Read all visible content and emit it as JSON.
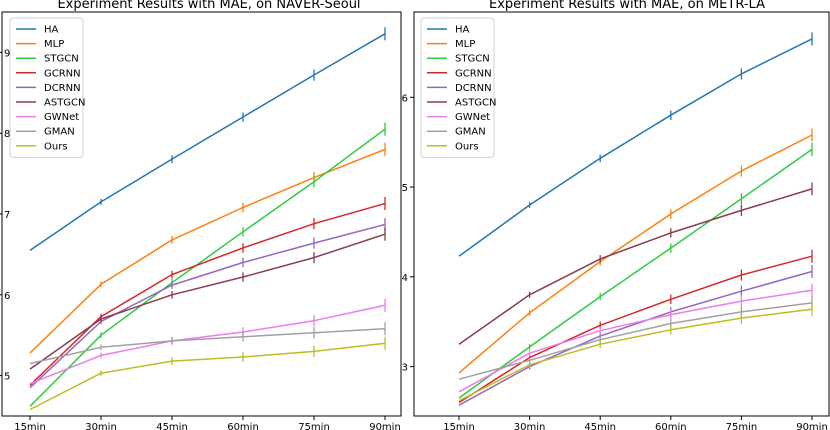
{
  "chart_data": [
    {
      "type": "line",
      "title": "Experiment Results with MAE, on NAVER-Seoul",
      "xlabel": "",
      "ylabel": "",
      "categories": [
        "15min",
        "30min",
        "45min",
        "60min",
        "75min",
        "90min"
      ],
      "yticks": [
        "5",
        "6",
        "7",
        "8",
        "9"
      ],
      "ylim": [
        4.5,
        9.5
      ],
      "legend_position": "top-left",
      "series": [
        {
          "name": "HA",
          "color": "#1f77b4",
          "values": [
            6.55,
            7.15,
            7.68,
            8.2,
            8.72,
            9.23
          ]
        },
        {
          "name": "MLP",
          "color": "#ff7f0e",
          "values": [
            5.28,
            6.13,
            6.68,
            7.08,
            7.45,
            7.8
          ]
        },
        {
          "name": "STGCN",
          "color": "#2ecc40",
          "values": [
            4.62,
            5.5,
            6.15,
            6.78,
            7.4,
            8.05
          ]
        },
        {
          "name": "GCRNN",
          "color": "#d62728",
          "values": [
            4.88,
            5.73,
            6.25,
            6.58,
            6.88,
            7.13
          ]
        },
        {
          "name": "DCRNN",
          "color": "#9467bd",
          "values": [
            4.85,
            5.67,
            6.12,
            6.4,
            6.64,
            6.87
          ]
        },
        {
          "name": "ASTGCN",
          "color": "#8c3c4f",
          "values": [
            5.08,
            5.7,
            6.0,
            6.22,
            6.46,
            6.75
          ]
        },
        {
          "name": "GWNet",
          "color": "#ee7bee",
          "values": [
            4.9,
            5.25,
            5.43,
            5.54,
            5.68,
            5.87
          ]
        },
        {
          "name": "GMAN",
          "color": "#a0a0a0",
          "values": [
            5.15,
            5.35,
            5.43,
            5.48,
            5.53,
            5.58
          ]
        },
        {
          "name": "Ours",
          "color": "#bcbd22",
          "values": [
            4.58,
            5.03,
            5.18,
            5.23,
            5.3,
            5.4
          ]
        }
      ]
    },
    {
      "type": "line",
      "title": "Experiment Results with MAE, on METR-LA",
      "xlabel": "",
      "ylabel": "",
      "categories": [
        "15min",
        "30min",
        "45min",
        "60min",
        "75min",
        "90min"
      ],
      "yticks": [
        "3",
        "4",
        "5",
        "6"
      ],
      "ylim": [
        2.45,
        6.95
      ],
      "legend_position": "top-left",
      "series": [
        {
          "name": "HA",
          "color": "#1f77b4",
          "values": [
            4.23,
            4.8,
            5.32,
            5.8,
            6.26,
            6.65
          ]
        },
        {
          "name": "MLP",
          "color": "#ff7f0e",
          "values": [
            2.93,
            3.6,
            4.17,
            4.7,
            5.18,
            5.58
          ]
        },
        {
          "name": "STGCN",
          "color": "#2ecc40",
          "values": [
            2.65,
            3.22,
            3.78,
            4.32,
            4.87,
            5.42
          ]
        },
        {
          "name": "GCRNN",
          "color": "#d62728",
          "values": [
            2.6,
            3.1,
            3.46,
            3.75,
            4.02,
            4.23
          ]
        },
        {
          "name": "DCRNN",
          "color": "#9467bd",
          "values": [
            2.57,
            3.0,
            3.34,
            3.61,
            3.84,
            4.06
          ]
        },
        {
          "name": "ASTGCN",
          "color": "#8c3c4f",
          "values": [
            3.25,
            3.8,
            4.2,
            4.49,
            4.74,
            4.98
          ]
        },
        {
          "name": "GWNet",
          "color": "#ee7bee",
          "values": [
            2.72,
            3.15,
            3.4,
            3.58,
            3.73,
            3.85
          ]
        },
        {
          "name": "GMAN",
          "color": "#a0a0a0",
          "values": [
            2.86,
            3.07,
            3.3,
            3.48,
            3.61,
            3.71
          ]
        },
        {
          "name": "Ours",
          "color": "#bcbd22",
          "values": [
            2.62,
            3.02,
            3.25,
            3.41,
            3.54,
            3.64
          ]
        }
      ]
    }
  ]
}
